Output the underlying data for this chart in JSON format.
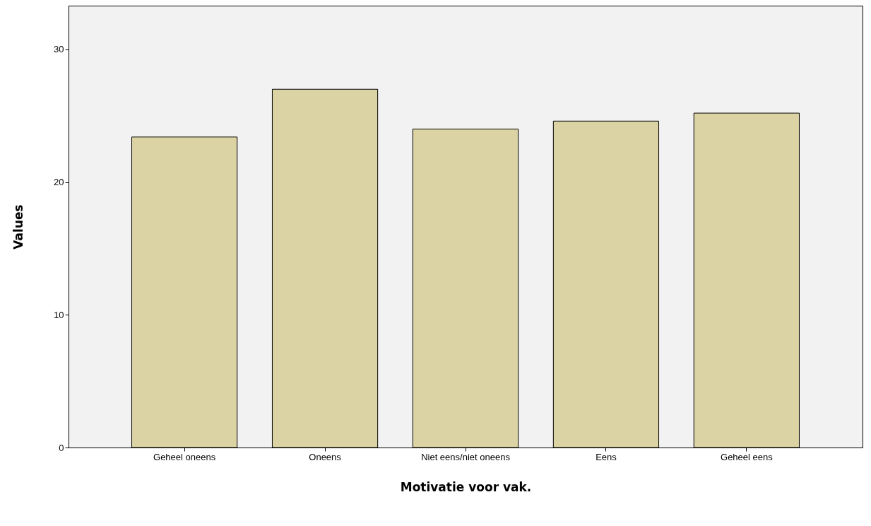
{
  "chart_data": {
    "type": "bar",
    "xlabel": "Motivatie voor vak.",
    "ylabel": "Values",
    "categories": [
      "Geheel oneens",
      "Oneens",
      "Niet eens/niet oneens",
      "Eens",
      "Geheel eens"
    ],
    "values": [
      23.4,
      27.0,
      24.0,
      24.6,
      25.2
    ],
    "color": "#dbd3a3",
    "ylim": [
      0,
      33.3
    ],
    "yticks": [
      0,
      10,
      20,
      30
    ],
    "grid": false
  }
}
